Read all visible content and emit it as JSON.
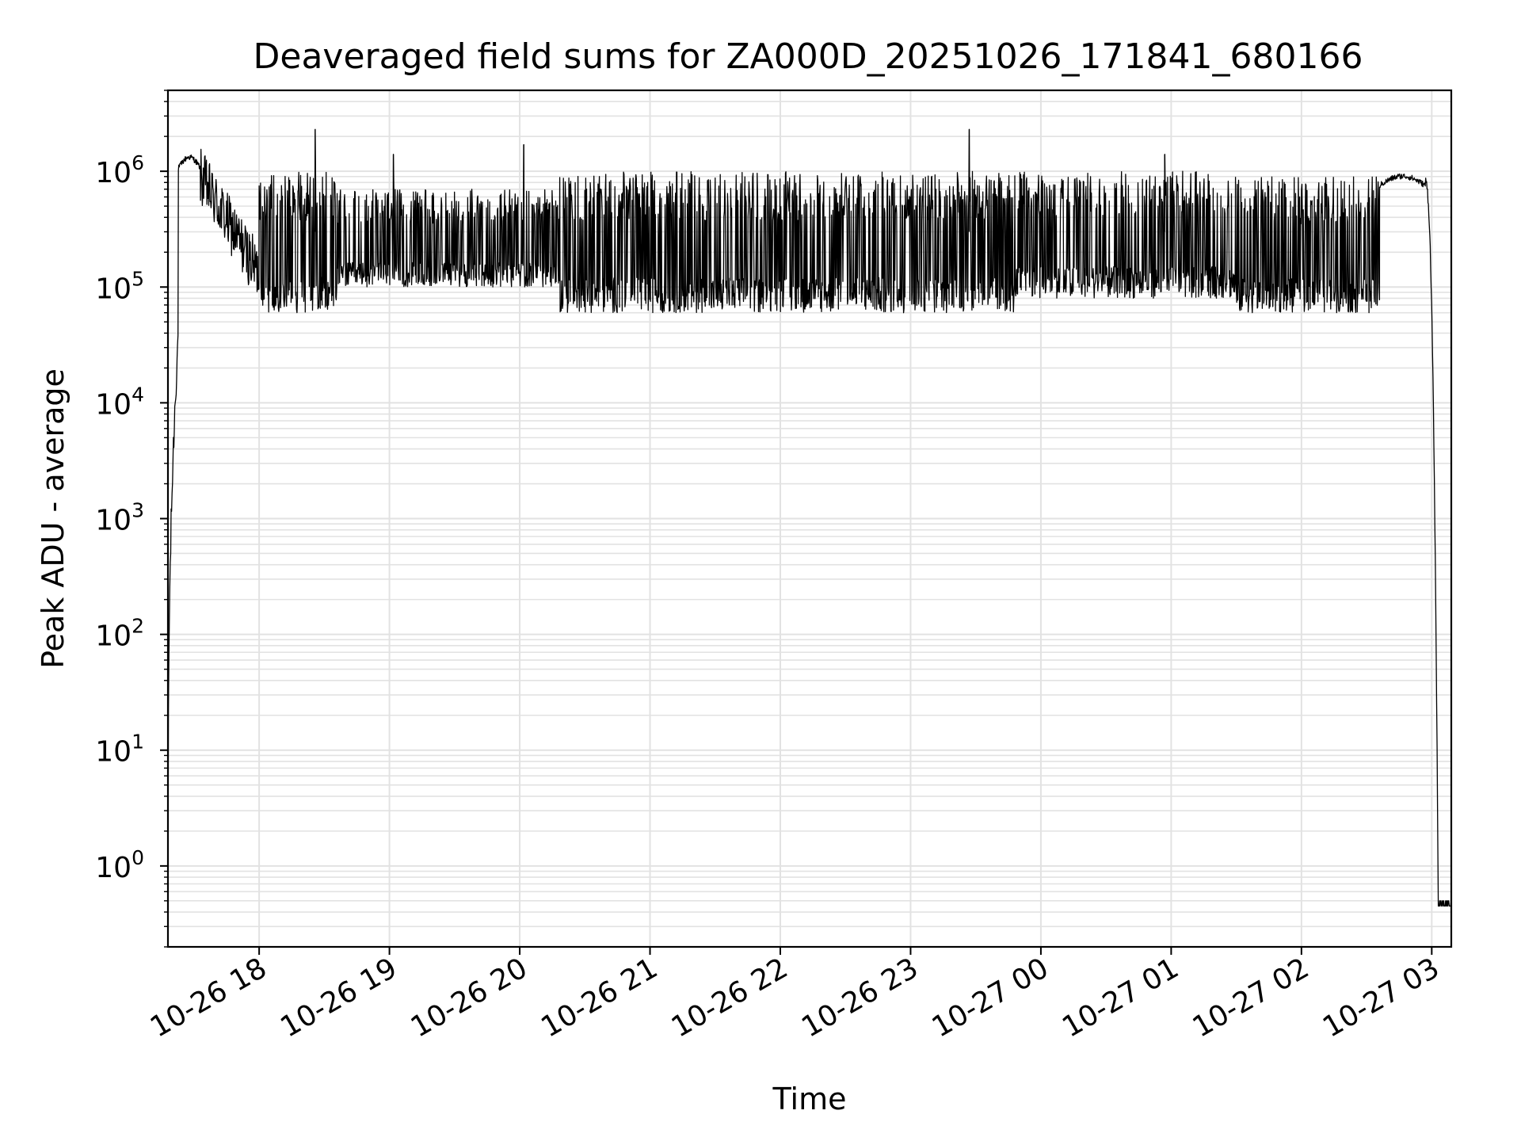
{
  "chart_data": {
    "type": "line",
    "title": "Deaveraged field sums for ZA000D_20251026_171841_680166",
    "xlabel": "Time",
    "ylabel": "Peak ADU - average",
    "yscale": "log",
    "ylim": [
      0.2,
      5000000
    ],
    "xlim_hours": [
      17.3,
      27.15
    ],
    "grid": true,
    "x_ticks": [
      {
        "label": "10-26 18",
        "hour": 18
      },
      {
        "label": "10-26 19",
        "hour": 19
      },
      {
        "label": "10-26 20",
        "hour": 20
      },
      {
        "label": "10-26 21",
        "hour": 21
      },
      {
        "label": "10-26 22",
        "hour": 22
      },
      {
        "label": "10-26 23",
        "hour": 23
      },
      {
        "label": "10-27 00",
        "hour": 24
      },
      {
        "label": "10-27 01",
        "hour": 25
      },
      {
        "label": "10-27 02",
        "hour": 26
      },
      {
        "label": "10-27 03",
        "hour": 27
      }
    ],
    "y_ticks": [
      {
        "base": "10",
        "exp": "0",
        "value": 1
      },
      {
        "base": "10",
        "exp": "1",
        "value": 10
      },
      {
        "base": "10",
        "exp": "2",
        "value": 100
      },
      {
        "base": "10",
        "exp": "3",
        "value": 1000
      },
      {
        "base": "10",
        "exp": "4",
        "value": 10000
      },
      {
        "base": "10",
        "exp": "5",
        "value": 100000
      },
      {
        "base": "10",
        "exp": "6",
        "value": 1000000
      }
    ],
    "series": [
      {
        "name": "Peak ADU - average",
        "color": "#000000",
        "segments": [
          {
            "from": 17.3,
            "to": 17.38,
            "lo": 0.5,
            "hi": 40000,
            "kind": "rise"
          },
          {
            "from": 17.38,
            "to": 17.55,
            "lo": 800000,
            "hi": 1400000,
            "kind": "smooth"
          },
          {
            "from": 17.55,
            "to": 18.0,
            "lo": 80000,
            "hi": 900000,
            "kind": "decay"
          },
          {
            "from": 18.0,
            "to": 18.6,
            "lo": 60000,
            "hi": 1000000,
            "kind": "noisy"
          },
          {
            "from": 18.6,
            "to": 20.3,
            "lo": 100000,
            "hi": 700000,
            "kind": "noisy"
          },
          {
            "from": 20.3,
            "to": 23.8,
            "lo": 60000,
            "hi": 1000000,
            "kind": "noisy"
          },
          {
            "from": 23.8,
            "to": 25.5,
            "lo": 80000,
            "hi": 1000000,
            "kind": "noisy"
          },
          {
            "from": 25.5,
            "to": 26.6,
            "lo": 60000,
            "hi": 900000,
            "kind": "noisy"
          },
          {
            "from": 26.6,
            "to": 26.95,
            "lo": 600000,
            "hi": 950000,
            "kind": "smooth"
          },
          {
            "from": 26.95,
            "to": 27.05,
            "lo": 0.45,
            "hi": 800000,
            "kind": "fall"
          },
          {
            "from": 27.05,
            "to": 27.15,
            "lo": 0.45,
            "hi": 0.5,
            "kind": "flat"
          }
        ],
        "spikes": [
          {
            "hour": 18.43,
            "value": 2300000
          },
          {
            "hour": 19.03,
            "value": 1400000
          },
          {
            "hour": 20.03,
            "value": 1700000
          },
          {
            "hour": 23.45,
            "value": 2300000
          },
          {
            "hour": 24.95,
            "value": 1400000
          }
        ]
      }
    ]
  }
}
